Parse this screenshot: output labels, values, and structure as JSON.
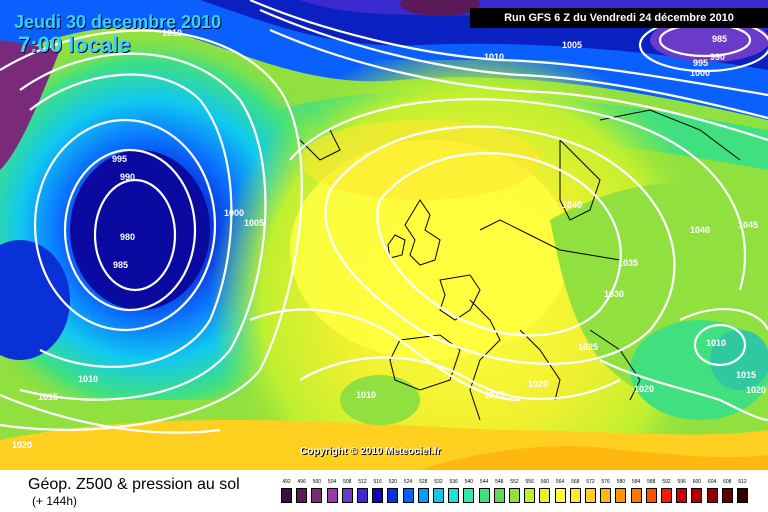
{
  "header": {
    "date": "Jeudi 30 decembre 2010",
    "time": "7:00 locale",
    "run": "Run GFS 6 Z du Vendredi 24 décembre 2010"
  },
  "copyright": "Copyright © 2010 Meteociel.fr",
  "footer": {
    "title": "Géop. Z500 & pression au sol",
    "subtitle": "(+ 144h)"
  },
  "legend": {
    "values": [
      "492",
      "496",
      "500",
      "504",
      "508",
      "512",
      "516",
      "520",
      "524",
      "528",
      "532",
      "536",
      "540",
      "544",
      "548",
      "552",
      "556",
      "560",
      "564",
      "568",
      "572",
      "576",
      "580",
      "584",
      "588",
      "592",
      "596",
      "600",
      "604",
      "608",
      "612"
    ],
    "colors": [
      "#3b0f3b",
      "#5a1a5a",
      "#7a2a7a",
      "#9a3aaa",
      "#6a3ac8",
      "#3a2ad0",
      "#0a0ab0",
      "#0a30d8",
      "#0a60ff",
      "#0a9aff",
      "#10c8f0",
      "#20e0d8",
      "#30e8b0",
      "#40e080",
      "#60d860",
      "#90e040",
      "#c0f030",
      "#e8f028",
      "#ffff40",
      "#ffe830",
      "#ffd020",
      "#ffb810",
      "#ff9800",
      "#ff7800",
      "#ff5000",
      "#f02000",
      "#d00000",
      "#b00000",
      "#900000",
      "#600000",
      "#300000"
    ]
  },
  "isobars": [
    {
      "label": "1010",
      "x": "162",
      "y": "36"
    },
    {
      "label": "995",
      "x": "112",
      "y": "162"
    },
    {
      "label": "990",
      "x": "120",
      "y": "180"
    },
    {
      "label": "980",
      "x": "120",
      "y": "240"
    },
    {
      "label": "985",
      "x": "113",
      "y": "268"
    },
    {
      "label": "1000",
      "x": "224",
      "y": "216"
    },
    {
      "label": "1005",
      "x": "244",
      "y": "226"
    },
    {
      "label": "1010",
      "x": "484",
      "y": "60"
    },
    {
      "label": "1005",
      "x": "562",
      "y": "48"
    },
    {
      "label": "985",
      "x": "712",
      "y": "42"
    },
    {
      "label": "990",
      "x": "710",
      "y": "60"
    },
    {
      "label": "995",
      "x": "693",
      "y": "66"
    },
    {
      "label": "1000",
      "x": "690",
      "y": "76"
    },
    {
      "label": "1040",
      "x": "562",
      "y": "208"
    },
    {
      "label": "1040",
      "x": "690",
      "y": "233"
    },
    {
      "label": "1045",
      "x": "738",
      "y": "228"
    },
    {
      "label": "1035",
      "x": "618",
      "y": "266"
    },
    {
      "label": "1030",
      "x": "604",
      "y": "297"
    },
    {
      "label": "1025",
      "x": "578",
      "y": "350"
    },
    {
      "label": "1010",
      "x": "706",
      "y": "346"
    },
    {
      "label": "1015",
      "x": "736",
      "y": "378"
    },
    {
      "label": "1020",
      "x": "746",
      "y": "393"
    },
    {
      "label": "1020",
      "x": "634",
      "y": "392"
    },
    {
      "label": "1020",
      "x": "528",
      "y": "387"
    },
    {
      "label": "1015",
      "x": "484",
      "y": "398"
    },
    {
      "label": "1010",
      "x": "356",
      "y": "398"
    },
    {
      "label": "1010",
      "x": "78",
      "y": "382"
    },
    {
      "label": "1015",
      "x": "38",
      "y": "400"
    },
    {
      "label": "1020",
      "x": "12",
      "y": "448"
    }
  ]
}
